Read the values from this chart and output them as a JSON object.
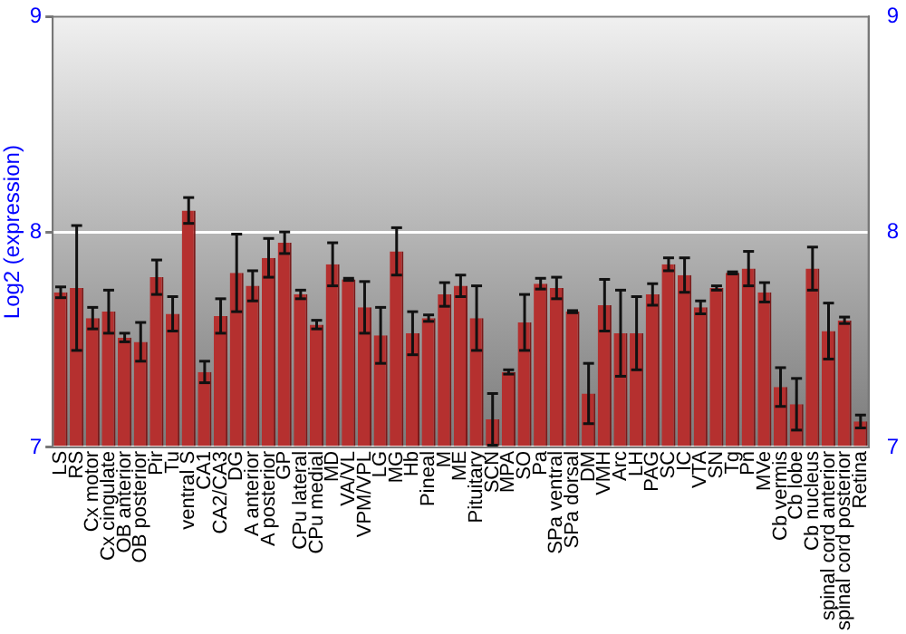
{
  "chart_data": {
    "type": "bar",
    "ylabel": "Log2 (expression)",
    "categories": [
      "LS",
      "RS",
      "Cx motor",
      "Cx cingulate",
      "OB anterior",
      "OB posterior",
      "Pir",
      "Tu",
      "ventral S",
      "CA1",
      "CA2/CA3",
      "DG",
      "A anterior",
      "A posterior",
      "GP",
      "CPu lateral",
      "CPu medial",
      "MD",
      "VA/VL",
      "VPM/VPL",
      "LG",
      "MG",
      "Hb",
      "Pineal",
      "M",
      "ME",
      "Pituitary",
      "SCN",
      "MPA",
      "SO",
      "Pa",
      "SPa ventral",
      "SPa dorsal",
      "DM",
      "VMH",
      "Arc",
      "LH",
      "PAG",
      "SC",
      "IC",
      "VTA",
      "SN",
      "Tg",
      "Pn",
      "MVe",
      "Cb vermis",
      "Cb lobe",
      "Cb nucleus",
      "spinal cord anterior",
      "spinal cord posterior",
      "Retina"
    ],
    "values": [
      7.72,
      7.74,
      7.6,
      7.63,
      7.51,
      7.49,
      7.79,
      7.62,
      8.1,
      7.35,
      7.61,
      7.81,
      7.75,
      7.88,
      7.95,
      7.71,
      7.57,
      7.85,
      7.78,
      7.65,
      7.52,
      7.91,
      7.53,
      7.6,
      7.71,
      7.75,
      7.6,
      7.13,
      7.35,
      7.58,
      7.76,
      7.74,
      7.63,
      7.25,
      7.66,
      7.53,
      7.53,
      7.71,
      7.85,
      7.8,
      7.65,
      7.74,
      7.81,
      7.83,
      7.72,
      7.28,
      7.2,
      7.83,
      7.54,
      7.59,
      7.12
    ],
    "errors": [
      0.025,
      0.29,
      0.05,
      0.1,
      0.02,
      0.09,
      0.08,
      0.08,
      0.06,
      0.05,
      0.08,
      0.18,
      0.07,
      0.09,
      0.05,
      0.02,
      0.02,
      0.1,
      0.005,
      0.12,
      0.13,
      0.11,
      0.1,
      0.015,
      0.055,
      0.05,
      0.15,
      0.12,
      0.01,
      0.13,
      0.025,
      0.05,
      0.005,
      0.14,
      0.12,
      0.2,
      0.17,
      0.05,
      0.03,
      0.08,
      0.03,
      0.01,
      0.005,
      0.08,
      0.045,
      0.09,
      0.12,
      0.1,
      0.13,
      0.015,
      0.03
    ],
    "color": "#b5302f",
    "ylim": [
      7,
      9
    ],
    "yticks": [
      7,
      8,
      9
    ],
    "y2lim": [
      7,
      9
    ],
    "y2ticks": [
      7,
      8,
      9
    ],
    "grid": "y"
  }
}
